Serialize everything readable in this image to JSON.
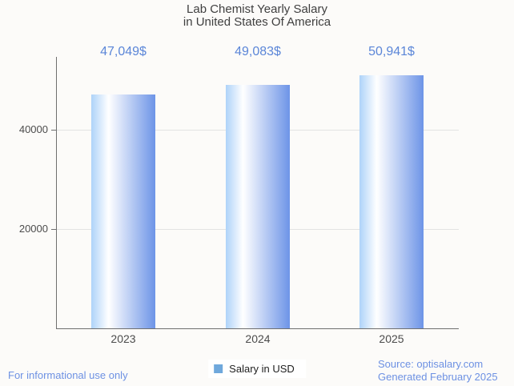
{
  "title": {
    "line1": "Lab Chemist Yearly Salary",
    "line2": "in United States Of America"
  },
  "chart_data": {
    "type": "bar",
    "title": "Lab Chemist Yearly Salary in United States Of America",
    "categories": [
      "2023",
      "2024",
      "2025"
    ],
    "series": [
      {
        "name": "Salary in USD",
        "values": [
          47049,
          49083,
          50941
        ]
      }
    ],
    "value_labels": [
      "47,049$",
      "49,083$",
      "50,941$"
    ],
    "xlabel": "",
    "ylabel": "",
    "ylim": [
      0,
      54700
    ],
    "yticks": [
      20000,
      40000
    ],
    "ytick_labels": [
      "20000",
      "40000"
    ],
    "grid": "horizontal-light",
    "legend_position": "bottom-center"
  },
  "legend": {
    "label": "Salary in USD"
  },
  "footer": {
    "disclaimer": "For informational use only",
    "source": "Source: optisalary.com",
    "generated": "Generated February 2025"
  },
  "colors": {
    "background": "#fcfbf9",
    "title_text": "#3f3f3f",
    "value_label": "#5b86d8",
    "tick_label": "#4c4c4c",
    "axis_line": "#6f6f6f",
    "gridline": "#e3e3e3",
    "bar_gradient_left": "#aed3f9",
    "bar_gradient_mid": "#ffffff",
    "bar_gradient_right": "#6d94e7",
    "legend_swatch": "#6fa8dc",
    "legend_text": "#1f1f1f",
    "footer_text": "#6d91e3"
  }
}
